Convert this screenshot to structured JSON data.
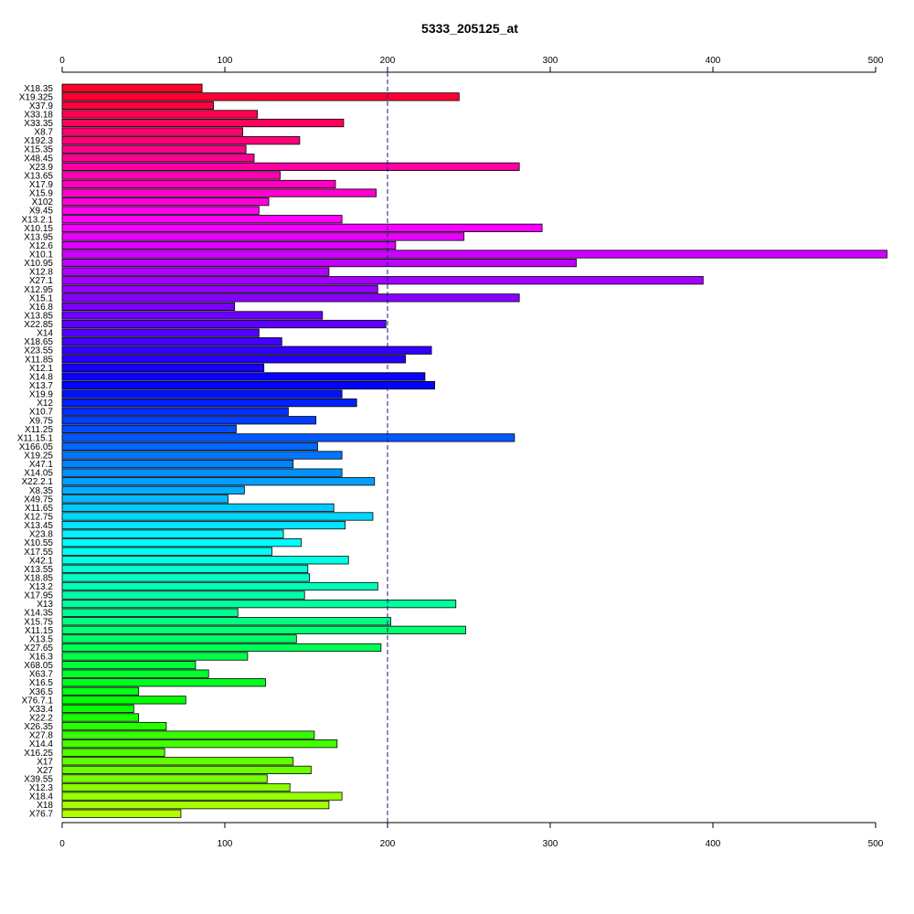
{
  "chart_data": {
    "type": "bar",
    "orientation": "horizontal",
    "title": "5333_205125_at",
    "xlabel": "",
    "ylabel": "",
    "xlim": [
      0,
      500
    ],
    "x_ticks": [
      0,
      100,
      200,
      300,
      400,
      500
    ],
    "reference_line": 200,
    "categories": [
      "X18.35",
      "X19.325",
      "X37.9",
      "X33.18",
      "X33.35",
      "X8.7",
      "X192.3",
      "X15.35",
      "X48.45",
      "X23.9",
      "X13.65",
      "X17.9",
      "X15.9",
      "X102",
      "X9.45",
      "X13.2.1",
      "X10.15",
      "X13.95",
      "X12.6",
      "X10.1",
      "X10.95",
      "X12.8",
      "X27.1",
      "X12.95",
      "X15.1",
      "X16.8",
      "X13.85",
      "X22.85",
      "X14",
      "X18.65",
      "X23.55",
      "X11.85",
      "X12.1",
      "X14.8",
      "X13.7",
      "X19.9",
      "X12",
      "X10.7",
      "X9.75",
      "X11.25",
      "X11.15.1",
      "X166.05",
      "X19.25",
      "X47.1",
      "X14.05",
      "X22.2.1",
      "X8.35",
      "X49.75",
      "X11.65",
      "X12.75",
      "X13.45",
      "X23.8",
      "X10.55",
      "X17.55",
      "X42.1",
      "X13.55",
      "X18.85",
      "X13.2",
      "X17.95",
      "X13",
      "X14.35",
      "X15.75",
      "X11.15",
      "X13.5",
      "X27.65",
      "X16.3",
      "X68.05",
      "X63.7",
      "X16.5",
      "X36.5",
      "X76.7.1",
      "X33.4",
      "X22.2",
      "X26.35",
      "X27.8",
      "X14.4",
      "X16.25",
      "X17",
      "X27",
      "X39.55",
      "X12.3",
      "X18.4",
      "X18",
      "X76.7"
    ],
    "values": [
      86,
      244,
      93,
      120,
      173,
      111,
      146,
      113,
      118,
      281,
      134,
      168,
      193,
      127,
      121,
      172,
      295,
      247,
      205,
      507,
      316,
      164,
      394,
      194,
      281,
      106,
      160,
      199,
      121,
      135,
      227,
      211,
      124,
      223,
      229,
      172,
      181,
      139,
      156,
      107,
      278,
      157,
      172,
      142,
      172,
      192,
      112,
      102,
      167,
      191,
      174,
      136,
      147,
      129,
      176,
      151,
      152,
      194,
      149,
      242,
      108,
      202,
      248,
      144,
      196,
      114,
      82,
      90,
      125,
      47,
      76,
      44,
      47,
      64,
      155,
      169,
      63,
      142,
      153,
      126,
      140,
      172,
      164,
      73
    ],
    "bar_colors": [
      "#ff0026",
      "#ff0034",
      "#ff0042",
      "#ff0050",
      "#ff005e",
      "#ff006c",
      "#ff007a",
      "#ff0088",
      "#ff0096",
      "#ff00a4",
      "#ff00b2",
      "#ff00c0",
      "#ff00ce",
      "#ff00dc",
      "#ff00ea",
      "#ff00f8",
      "#f700ff",
      "#e900ff",
      "#db00ff",
      "#cd00ff",
      "#bf00ff",
      "#b100ff",
      "#a300ff",
      "#9500ff",
      "#8700ff",
      "#7900ff",
      "#6b00ff",
      "#5d00ff",
      "#4f00ff",
      "#4100ff",
      "#3300ff",
      "#2500ff",
      "#1700ff",
      "#0900ff",
      "#0005ff",
      "#0013ff",
      "#0021ff",
      "#002fff",
      "#003dff",
      "#004bff",
      "#0059ff",
      "#0067ff",
      "#0075ff",
      "#0083ff",
      "#0091ff",
      "#009fff",
      "#00adff",
      "#00bbff",
      "#00c9ff",
      "#00d7ff",
      "#00e5ff",
      "#00f3ff",
      "#00ffff",
      "#00fff1",
      "#00ffe3",
      "#00ffd5",
      "#00ffc7",
      "#00ffb9",
      "#00ffab",
      "#00ff9d",
      "#00ff8f",
      "#00ff81",
      "#00ff73",
      "#00ff65",
      "#00ff57",
      "#00ff49",
      "#00ff3b",
      "#00ff2d",
      "#00ff1f",
      "#00ff11",
      "#00ff03",
      "#0aff00",
      "#18ff00",
      "#26ff00",
      "#34ff00",
      "#42ff00",
      "#50ff00",
      "#5eff00",
      "#6cff00",
      "#7aff00",
      "#88ff00",
      "#96ff00",
      "#a4ff00",
      "#b2ff00"
    ],
    "grid": false,
    "legend": "none"
  }
}
